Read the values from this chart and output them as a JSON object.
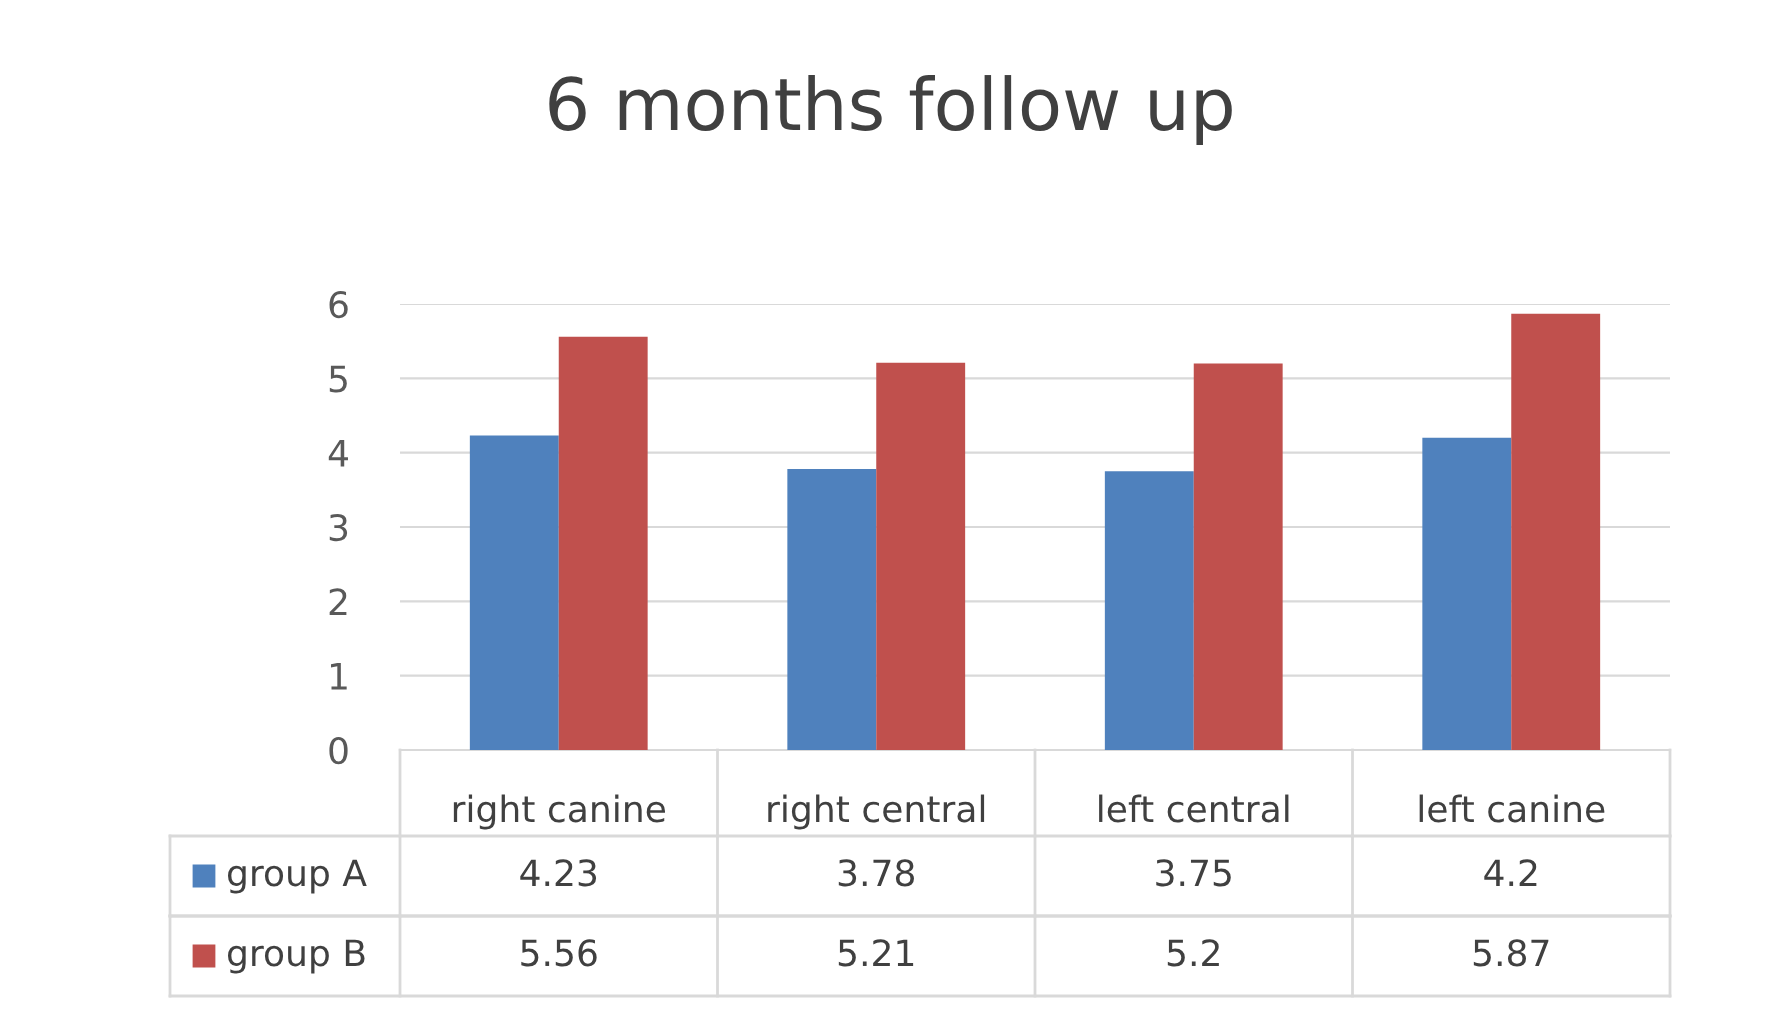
{
  "chart_data": {
    "type": "bar",
    "title": "6 months follow up",
    "categories": [
      "right canine",
      "right central",
      "left central",
      "left canine"
    ],
    "series": [
      {
        "name": "group A",
        "color": "#4f81bd",
        "values": [
          4.23,
          3.78,
          3.75,
          4.2
        ]
      },
      {
        "name": "group B",
        "color": "#c0504d",
        "values": [
          5.56,
          5.21,
          5.2,
          5.87
        ]
      }
    ],
    "ylim": [
      0,
      6
    ],
    "yticks": [
      0,
      1,
      2,
      3,
      4,
      5,
      6
    ],
    "grid": "y",
    "data_labels": true,
    "legend": "bottom"
  }
}
